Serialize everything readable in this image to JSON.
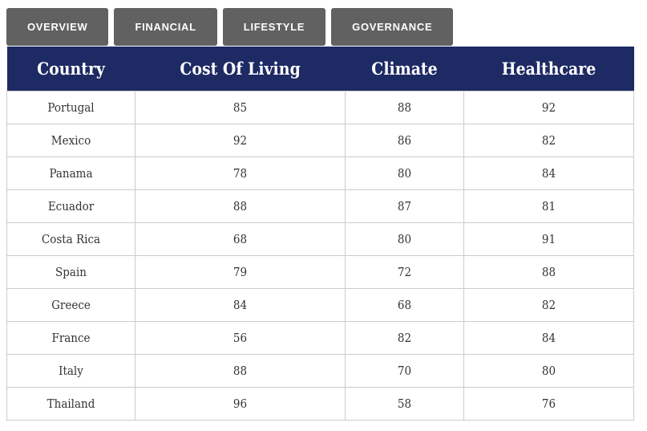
{
  "tabs": [
    {
      "id": "overview",
      "label": "OVERVIEW"
    },
    {
      "id": "financial",
      "label": "FINANCIAL"
    },
    {
      "id": "lifestyle",
      "label": "LIFESTYLE"
    },
    {
      "id": "governance",
      "label": "GOVERNANCE"
    }
  ],
  "table": {
    "columns": [
      "Country",
      "Cost Of Living",
      "Climate",
      "Healthcare"
    ],
    "rows": [
      {
        "country": "Portugal",
        "values": [
          85,
          88,
          92
        ]
      },
      {
        "country": "Mexico",
        "values": [
          92,
          86,
          82
        ]
      },
      {
        "country": "Panama",
        "values": [
          78,
          80,
          84
        ]
      },
      {
        "country": "Ecuador",
        "values": [
          88,
          87,
          81
        ]
      },
      {
        "country": "Costa Rica",
        "values": [
          68,
          80,
          91
        ]
      },
      {
        "country": "Spain",
        "values": [
          79,
          72,
          88
        ]
      },
      {
        "country": "Greece",
        "values": [
          84,
          68,
          82
        ]
      },
      {
        "country": "France",
        "values": [
          56,
          82,
          84
        ]
      },
      {
        "country": "Italy",
        "values": [
          88,
          70,
          80
        ]
      },
      {
        "country": "Thailand",
        "values": [
          96,
          58,
          76
        ]
      }
    ]
  },
  "colors": {
    "tab_background": "#616161",
    "tab_text": "#ffffff",
    "header_background": "#1e2a64",
    "header_text": "#ffffff",
    "body_text": "#333333",
    "border": "#cccccc"
  }
}
